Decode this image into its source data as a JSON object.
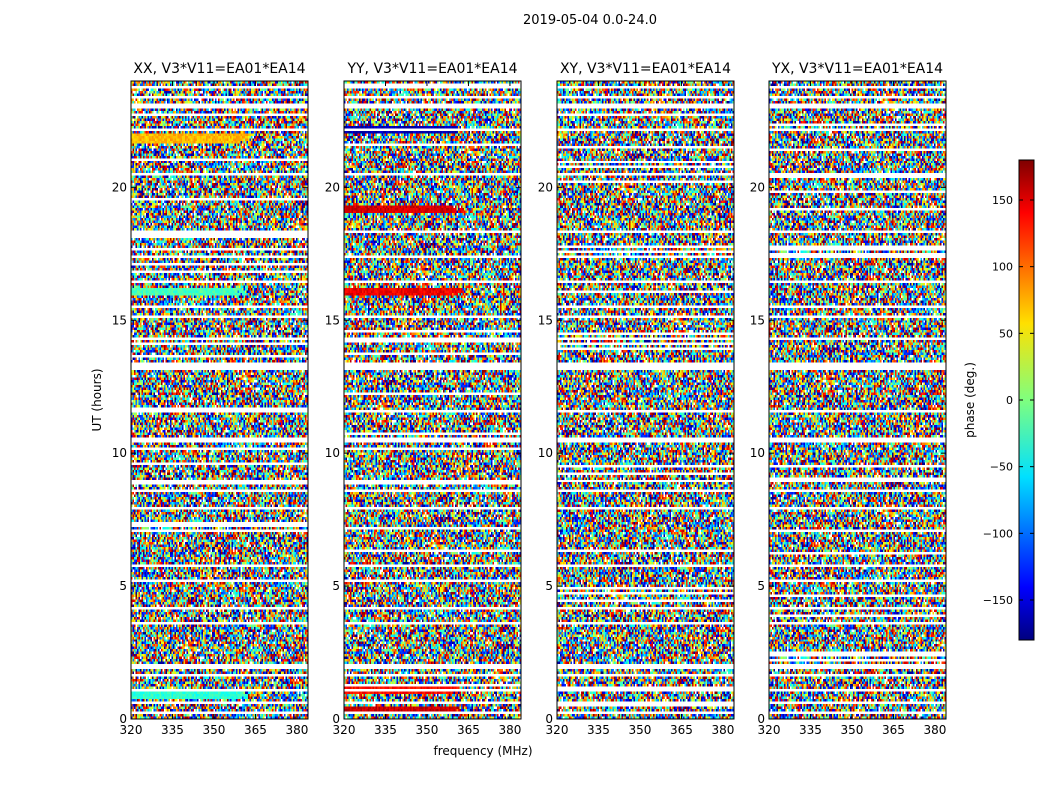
{
  "figure": {
    "title": "2019-05-04 0.0-24.0"
  },
  "chart_data": {
    "type": "heatmap",
    "title": "2019-05-04 0.0-24.0",
    "xlabel": "frequency (MHz)",
    "ylabel": "UT (hours)",
    "xlim": [
      320,
      384
    ],
    "ylim": [
      0,
      24
    ],
    "x_ticks": [
      320,
      335,
      350,
      365,
      380
    ],
    "y_ticks": [
      0,
      5,
      10,
      15,
      20
    ],
    "colormap": "jet",
    "colorbar": {
      "label": "phase (deg.)",
      "range": [
        -180,
        180
      ],
      "ticks": [
        150,
        100,
        50,
        0,
        -50,
        -100,
        -150
      ],
      "tick_labels": [
        "150",
        "100",
        "50",
        "0",
        "−50",
        "−100",
        "−150"
      ]
    },
    "panels": [
      {
        "title": "XX, V3*V11=EA01*EA14",
        "polarization": "XX"
      },
      {
        "title": "YY, V3*V11=EA01*EA14",
        "polarization": "YY"
      },
      {
        "title": "XY, V3*V11=EA01*EA14",
        "polarization": "XY"
      },
      {
        "title": "YX, V3*V11=EA01*EA14",
        "polarization": "YX"
      }
    ],
    "flagged_gaps_hours": [
      [
        0.15,
        0.25
      ],
      [
        0.55,
        0.65
      ],
      [
        1.0,
        1.12
      ],
      [
        1.55,
        1.65
      ],
      [
        1.9,
        2.05
      ],
      [
        3.55,
        3.68
      ],
      [
        4.1,
        4.25
      ],
      [
        5.7,
        5.78
      ],
      [
        7.85,
        8.0
      ],
      [
        8.55,
        8.62
      ],
      [
        8.9,
        9.0
      ],
      [
        10.45,
        10.55
      ],
      [
        11.5,
        11.58
      ],
      [
        13.1,
        13.4
      ],
      [
        14.25,
        14.32
      ],
      [
        15.1,
        15.18
      ],
      [
        16.4,
        16.5
      ],
      [
        17.3,
        17.4
      ],
      [
        18.3,
        18.4
      ],
      [
        20.4,
        20.55
      ],
      [
        22.1,
        22.2
      ],
      [
        23.0,
        23.12
      ],
      [
        23.3,
        23.4
      ],
      [
        23.7,
        23.8
      ]
    ],
    "uniform_bands": [
      {
        "panel": 0,
        "hours": [
          21.7,
          22.0
        ],
        "phase": 70
      },
      {
        "panel": 0,
        "hours": [
          15.9,
          16.2
        ],
        "phase": -20
      },
      {
        "panel": 0,
        "hours": [
          0.75,
          1.0
        ],
        "phase": -30
      },
      {
        "panel": 1,
        "hours": [
          22.0,
          22.3
        ],
        "phase": -160
      },
      {
        "panel": 1,
        "hours": [
          19.0,
          19.3
        ],
        "phase": 150
      },
      {
        "panel": 1,
        "hours": [
          15.9,
          16.2
        ],
        "phase": 140
      },
      {
        "panel": 1,
        "hours": [
          0.9,
          1.2
        ],
        "phase": 130
      },
      {
        "panel": 1,
        "hours": [
          0.2,
          0.45
        ],
        "phase": 155
      }
    ]
  }
}
